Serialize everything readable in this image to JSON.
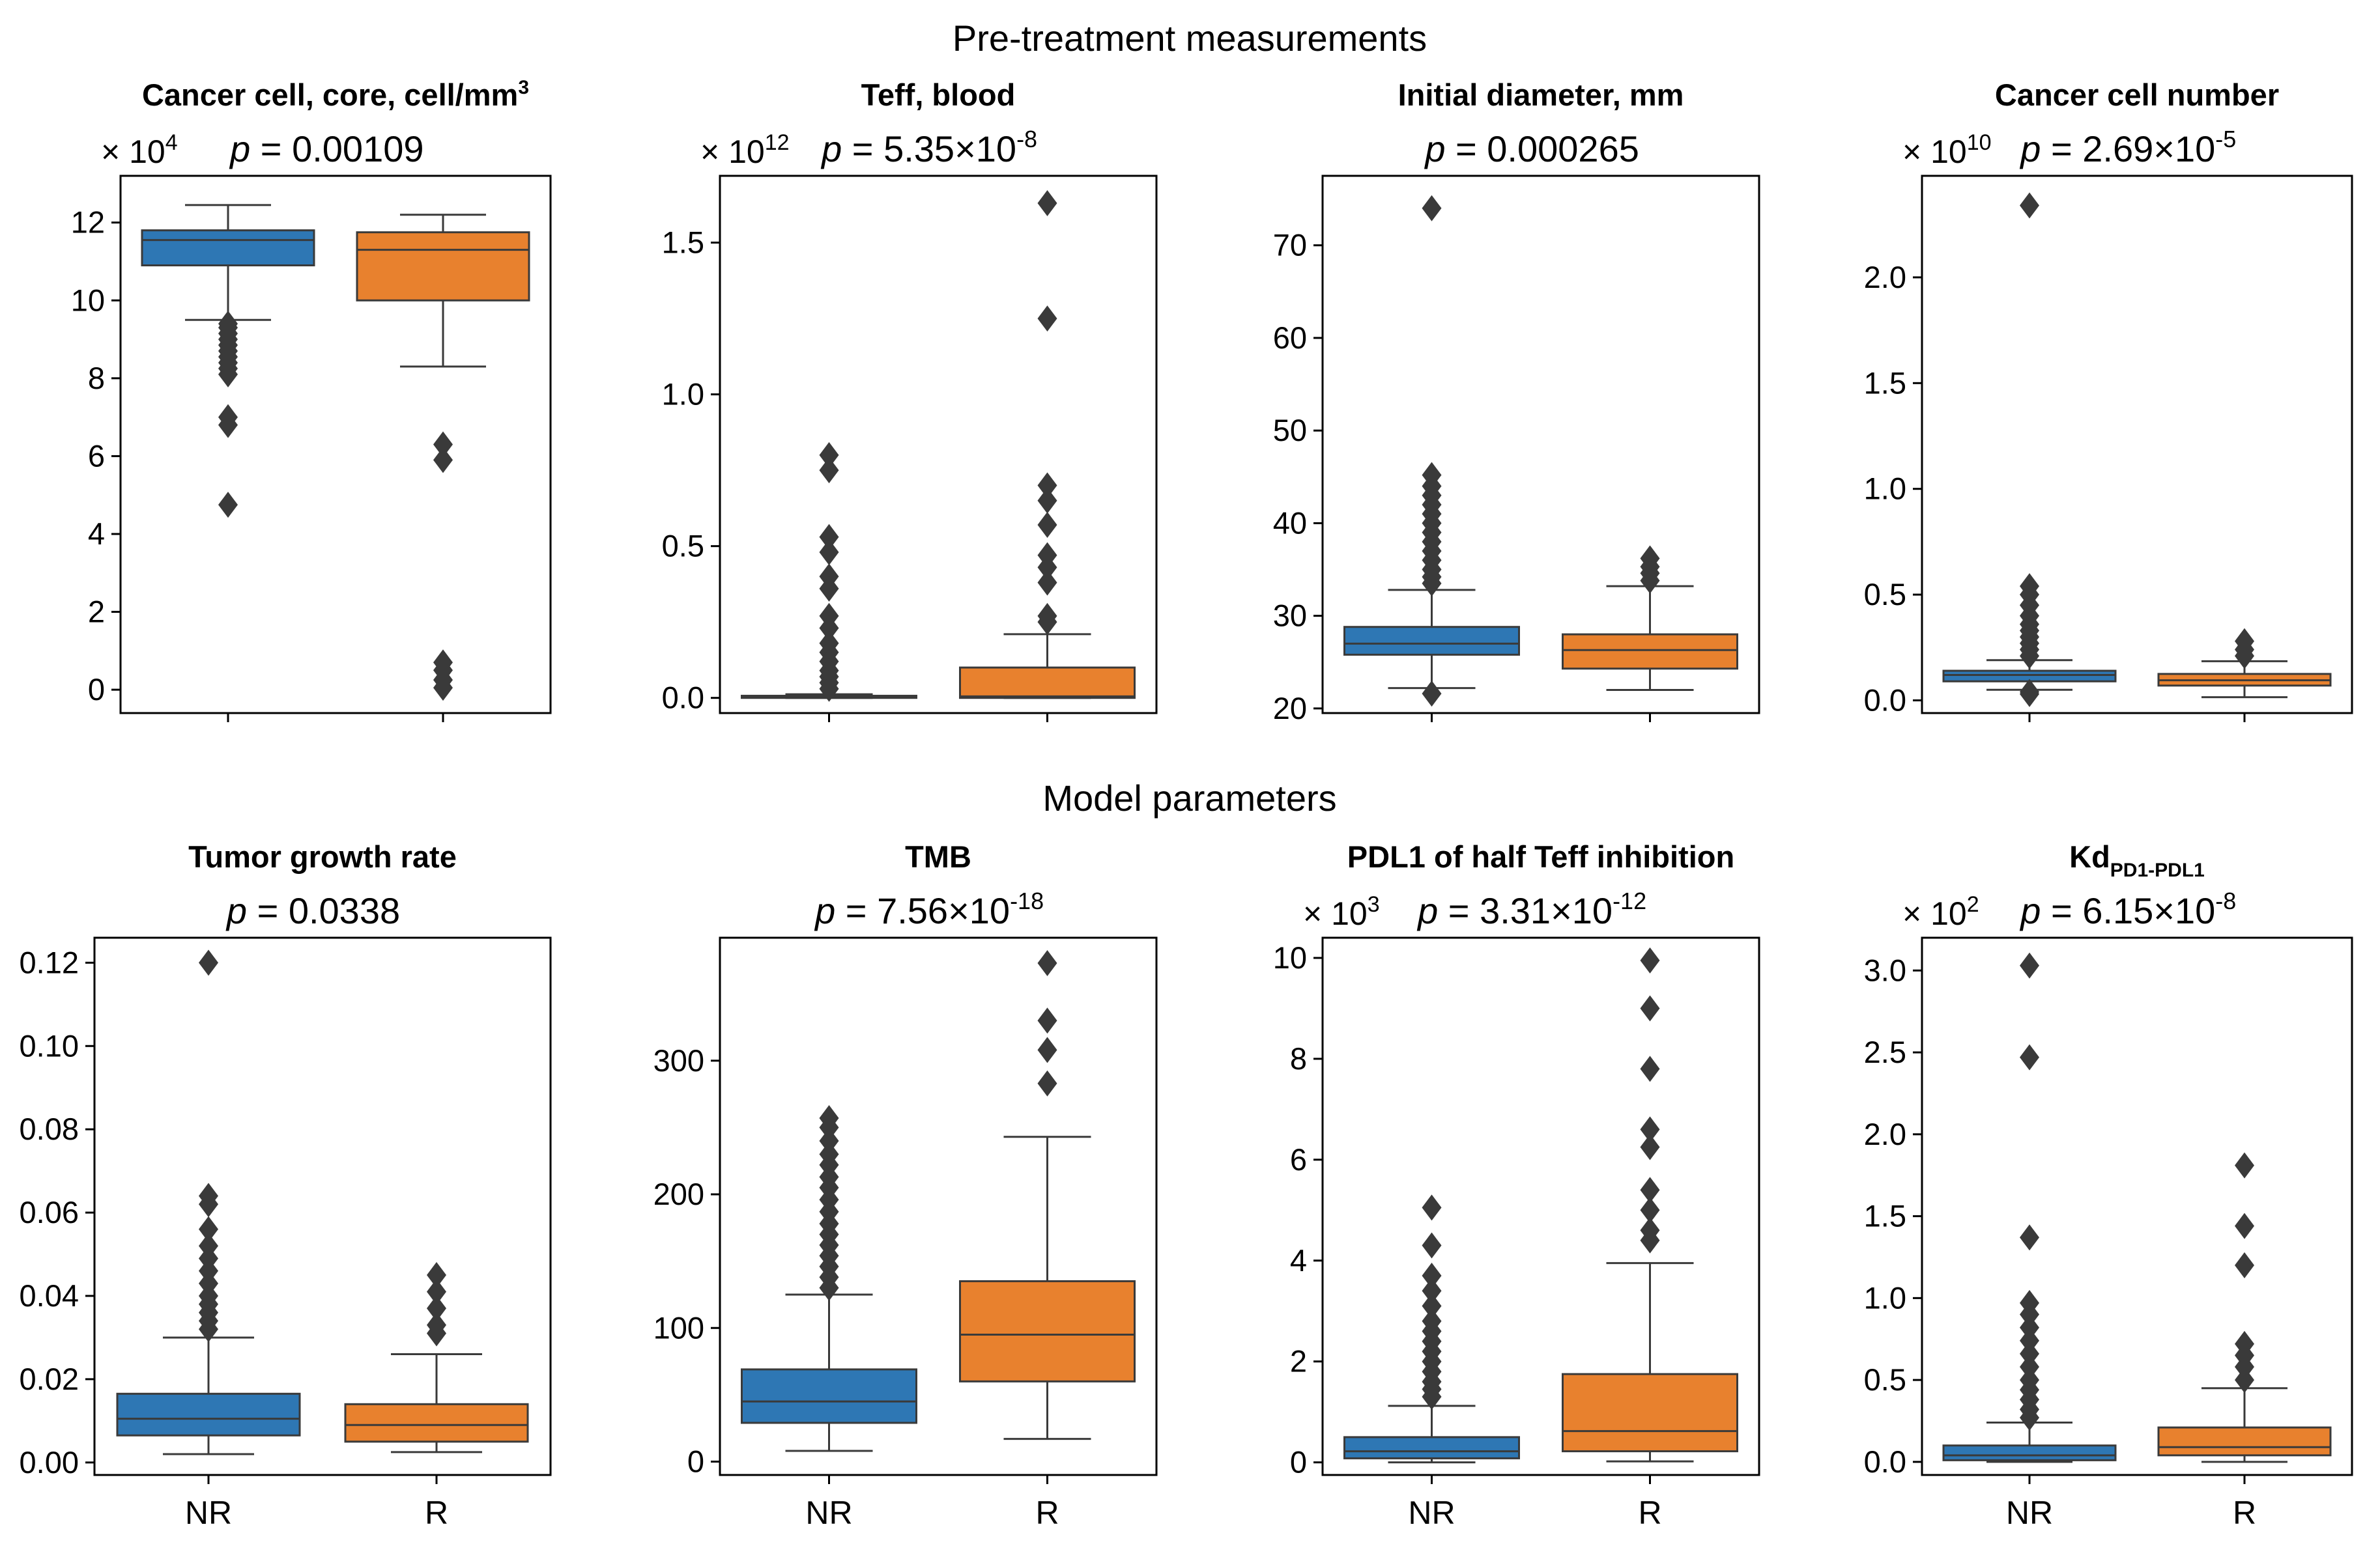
{
  "section_titles": {
    "top": "Pre-treatment measurements",
    "bottom": "Model parameters"
  },
  "colors": {
    "NR": "#2e77b4",
    "R": "#e8812e",
    "line": "#3a3a3a"
  },
  "chart_data": [
    {
      "id": "p1",
      "type": "box",
      "title": "Cancer cell, core, cell/mm",
      "title_sup": "3",
      "title_sub": "",
      "p_value": {
        "prefix": "p",
        "text": " = 0.00109",
        "exp": ""
      },
      "multiplier": {
        "text": "× 10",
        "exp": "4"
      },
      "ylim": [
        -0.6,
        13.2
      ],
      "yticks": [
        0,
        2,
        4,
        6,
        8,
        10,
        12
      ],
      "ytick_labels": [
        "0",
        "2",
        "4",
        "6",
        "8",
        "10",
        "12"
      ],
      "categories": [
        "NR",
        "R"
      ],
      "show_xlabels": false,
      "groups": [
        {
          "name": "NR",
          "q1": 10.9,
          "median": 11.55,
          "q3": 11.8,
          "whislo": 9.5,
          "whishi": 12.45,
          "fliers": [
            9.4,
            9.3,
            9.15,
            9.0,
            8.85,
            8.7,
            8.55,
            8.4,
            8.25,
            8.1,
            7.0,
            6.8,
            4.75
          ]
        },
        {
          "name": "R",
          "q1": 10.0,
          "median": 11.3,
          "q3": 11.75,
          "whislo": 8.3,
          "whishi": 12.2,
          "fliers": [
            6.3,
            5.9,
            0.7,
            0.5,
            0.25,
            0.05
          ]
        }
      ]
    },
    {
      "id": "p2",
      "type": "box",
      "title": "Teff, blood",
      "title_sup": "",
      "title_sub": "",
      "p_value": {
        "prefix": "p",
        "text": " = 5.35×10",
        "exp": "-8"
      },
      "multiplier": {
        "text": "× 10",
        "exp": "12"
      },
      "ylim": [
        -0.05,
        1.72
      ],
      "yticks": [
        0.0,
        0.5,
        1.0,
        1.5
      ],
      "ytick_labels": [
        "0.0",
        "0.5",
        "1.0",
        "1.5"
      ],
      "categories": [
        "NR",
        "R"
      ],
      "show_xlabels": false,
      "groups": [
        {
          "name": "NR",
          "q1": 0.0,
          "median": 0.003,
          "q3": 0.007,
          "whislo": 0.0,
          "whishi": 0.012,
          "fliers": [
            0.8,
            0.75,
            0.53,
            0.48,
            0.4,
            0.36,
            0.27,
            0.23,
            0.18,
            0.15,
            0.12,
            0.09,
            0.07,
            0.05,
            0.03
          ]
        },
        {
          "name": "R",
          "q1": 0.0,
          "median": 0.005,
          "q3": 0.1,
          "whislo": 0.0,
          "whishi": 0.21,
          "fliers": [
            1.63,
            1.25,
            0.7,
            0.65,
            0.57,
            0.47,
            0.43,
            0.38,
            0.27,
            0.25
          ]
        }
      ]
    },
    {
      "id": "p3",
      "type": "box",
      "title": "Initial diameter, mm",
      "title_sup": "",
      "title_sub": "",
      "p_value": {
        "prefix": "p",
        "text": " = 0.000265",
        "exp": ""
      },
      "multiplier": {
        "text": "",
        "exp": ""
      },
      "ylim": [
        19.5,
        77.5
      ],
      "yticks": [
        20,
        30,
        40,
        50,
        60,
        70
      ],
      "ytick_labels": [
        "20",
        "30",
        "40",
        "50",
        "60",
        "70"
      ],
      "categories": [
        "NR",
        "R"
      ],
      "show_xlabels": false,
      "groups": [
        {
          "name": "NR",
          "q1": 25.8,
          "median": 27.0,
          "q3": 28.8,
          "whislo": 22.2,
          "whishi": 32.8,
          "fliers": [
            74.0,
            45.2,
            44.0,
            43.0,
            42.0,
            41.0,
            40.0,
            39.0,
            38.0,
            37.0,
            36.0,
            35.0,
            34.2,
            33.5,
            21.6
          ]
        },
        {
          "name": "R",
          "q1": 24.3,
          "median": 26.3,
          "q3": 28.0,
          "whislo": 22.0,
          "whishi": 33.2,
          "fliers": [
            36.2,
            35.3,
            34.6,
            33.8
          ]
        }
      ]
    },
    {
      "id": "p4",
      "type": "box",
      "title": "Cancer cell number",
      "title_sup": "",
      "title_sub": "",
      "p_value": {
        "prefix": "p",
        "text": " = 2.69×10",
        "exp": "-5"
      },
      "multiplier": {
        "text": "× 10",
        "exp": "10"
      },
      "ylim": [
        -0.06,
        2.48
      ],
      "yticks": [
        0.0,
        0.5,
        1.0,
        1.5,
        2.0
      ],
      "ytick_labels": [
        "0.0",
        "0.5",
        "1.0",
        "1.5",
        "2.0"
      ],
      "categories": [
        "NR",
        "R"
      ],
      "show_xlabels": false,
      "groups": [
        {
          "name": "NR",
          "q1": 0.09,
          "median": 0.12,
          "q3": 0.14,
          "whislo": 0.05,
          "whishi": 0.19,
          "fliers": [
            2.34,
            0.54,
            0.5,
            0.45,
            0.4,
            0.36,
            0.33,
            0.3,
            0.27,
            0.24,
            0.21,
            0.04,
            0.03
          ]
        },
        {
          "name": "R",
          "q1": 0.07,
          "median": 0.095,
          "q3": 0.125,
          "whislo": 0.015,
          "whishi": 0.185,
          "fliers": [
            0.28,
            0.24,
            0.21
          ]
        }
      ]
    },
    {
      "id": "p5",
      "type": "box",
      "title": "Tumor growth rate",
      "title_sup": "",
      "title_sub": "",
      "p_value": {
        "prefix": "p",
        "text": " = 0.0338",
        "exp": ""
      },
      "multiplier": {
        "text": "",
        "exp": ""
      },
      "ylim": [
        -0.003,
        0.126
      ],
      "yticks": [
        0.0,
        0.02,
        0.04,
        0.06,
        0.08,
        0.1,
        0.12
      ],
      "ytick_labels": [
        "0.00",
        "0.02",
        "0.04",
        "0.06",
        "0.08",
        "0.10",
        "0.12"
      ],
      "categories": [
        "NR",
        "R"
      ],
      "show_xlabels": true,
      "groups": [
        {
          "name": "NR",
          "q1": 0.0065,
          "median": 0.0105,
          "q3": 0.0165,
          "whislo": 0.002,
          "whishi": 0.03,
          "fliers": [
            0.12,
            0.064,
            0.062,
            0.056,
            0.052,
            0.049,
            0.046,
            0.043,
            0.04,
            0.038,
            0.036,
            0.034,
            0.032
          ]
        },
        {
          "name": "R",
          "q1": 0.005,
          "median": 0.009,
          "q3": 0.014,
          "whislo": 0.0025,
          "whishi": 0.026,
          "fliers": [
            0.045,
            0.041,
            0.037,
            0.033,
            0.031
          ]
        }
      ]
    },
    {
      "id": "p6",
      "type": "box",
      "title": "TMB",
      "title_sup": "",
      "title_sub": "",
      "p_value": {
        "prefix": "p",
        "text": " = 7.56×10",
        "exp": "-18"
      },
      "multiplier": {
        "text": "",
        "exp": ""
      },
      "ylim": [
        -10,
        392
      ],
      "yticks": [
        0,
        100,
        200,
        300
      ],
      "ytick_labels": [
        "0",
        "100",
        "200",
        "300"
      ],
      "categories": [
        "NR",
        "R"
      ],
      "show_xlabels": true,
      "groups": [
        {
          "name": "NR",
          "q1": 29,
          "median": 45,
          "q3": 69,
          "whislo": 8,
          "whishi": 125,
          "fliers": [
            257,
            250,
            240,
            230,
            222,
            213,
            205,
            196,
            187,
            178,
            170,
            162,
            154,
            146,
            138,
            130
          ]
        },
        {
          "name": "R",
          "q1": 60,
          "median": 95,
          "q3": 135,
          "whislo": 17,
          "whishi": 243,
          "fliers": [
            373,
            330,
            308,
            283
          ]
        }
      ]
    },
    {
      "id": "p7",
      "type": "box",
      "title": "PDL1 of half Teff inhibition",
      "title_sup": "",
      "title_sub": "",
      "p_value": {
        "prefix": "p",
        "text": " = 3.31×10",
        "exp": "-12"
      },
      "multiplier": {
        "text": "× 10",
        "exp": "3"
      },
      "ylim": [
        -0.25,
        10.4
      ],
      "yticks": [
        0,
        2,
        4,
        6,
        8,
        10
      ],
      "ytick_labels": [
        "0",
        "2",
        "4",
        "6",
        "8",
        "10"
      ],
      "categories": [
        "NR",
        "R"
      ],
      "show_xlabels": true,
      "groups": [
        {
          "name": "NR",
          "q1": 0.08,
          "median": 0.22,
          "q3": 0.5,
          "whislo": 0.0,
          "whishi": 1.12,
          "fliers": [
            5.05,
            4.3,
            3.7,
            3.4,
            3.1,
            2.8,
            2.6,
            2.4,
            2.2,
            2.0,
            1.8,
            1.6,
            1.45,
            1.3
          ]
        },
        {
          "name": "R",
          "q1": 0.22,
          "median": 0.62,
          "q3": 1.75,
          "whislo": 0.02,
          "whishi": 3.95,
          "fliers": [
            9.95,
            9.0,
            7.8,
            6.6,
            6.25,
            5.4,
            5.0,
            4.6,
            4.4
          ]
        }
      ]
    },
    {
      "id": "p8",
      "type": "box",
      "title": "Kd",
      "title_sup": "",
      "title_sub": "PD1-PDL1",
      "p_value": {
        "prefix": "p",
        "text": " = 6.15×10",
        "exp": "-8"
      },
      "multiplier": {
        "text": "× 10",
        "exp": "2"
      },
      "ylim": [
        -0.08,
        3.2
      ],
      "yticks": [
        0.0,
        0.5,
        1.0,
        1.5,
        2.0,
        2.5,
        3.0
      ],
      "ytick_labels": [
        "0.0",
        "0.5",
        "1.0",
        "1.5",
        "2.0",
        "2.5",
        "3.0"
      ],
      "categories": [
        "NR",
        "R"
      ],
      "show_xlabels": true,
      "groups": [
        {
          "name": "NR",
          "q1": 0.01,
          "median": 0.04,
          "q3": 0.1,
          "whislo": 0.0,
          "whishi": 0.24,
          "fliers": [
            3.03,
            2.47,
            1.37,
            0.97,
            0.9,
            0.82,
            0.74,
            0.66,
            0.58,
            0.5,
            0.44,
            0.38,
            0.32,
            0.27
          ]
        },
        {
          "name": "R",
          "q1": 0.04,
          "median": 0.09,
          "q3": 0.21,
          "whislo": 0.0,
          "whishi": 0.45,
          "fliers": [
            1.81,
            1.44,
            1.2,
            0.72,
            0.65,
            0.58,
            0.5
          ]
        }
      ]
    }
  ]
}
